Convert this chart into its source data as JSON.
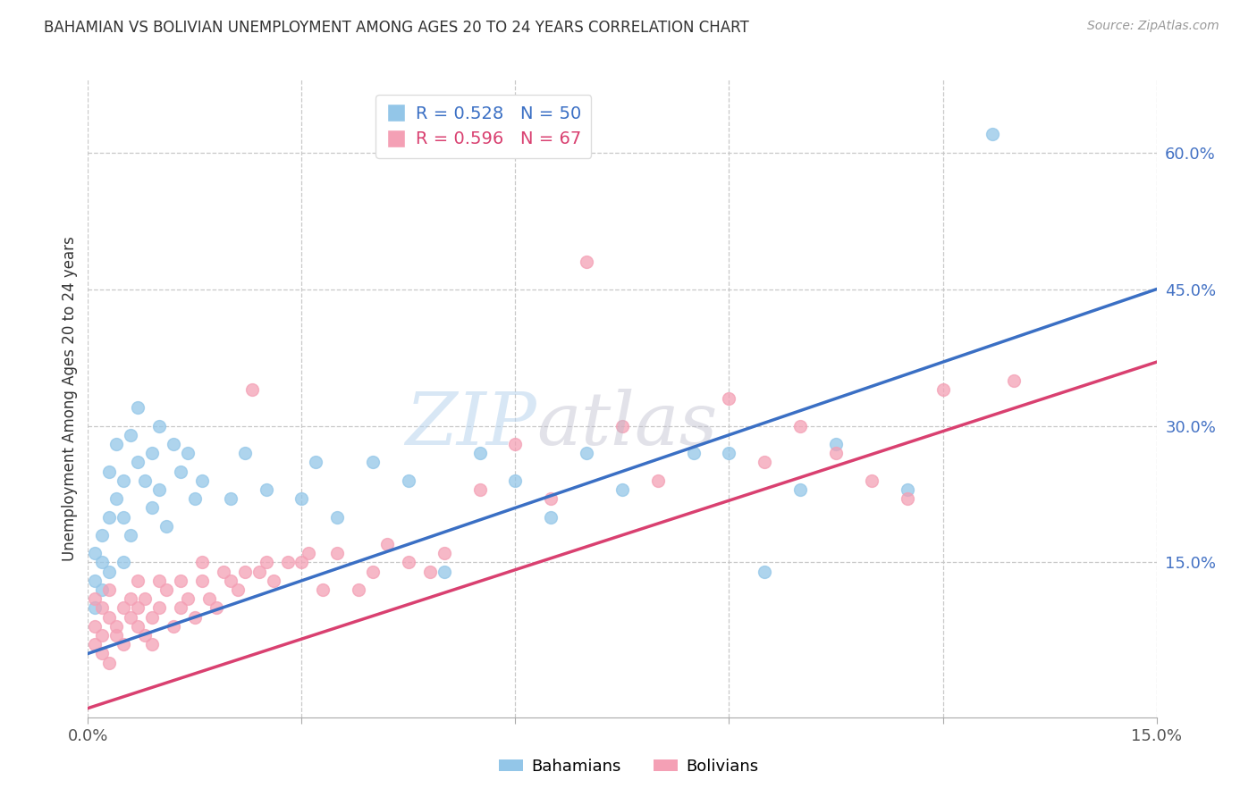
{
  "title": "BAHAMIAN VS BOLIVIAN UNEMPLOYMENT AMONG AGES 20 TO 24 YEARS CORRELATION CHART",
  "source": "Source: ZipAtlas.com",
  "ylabel": "Unemployment Among Ages 20 to 24 years",
  "xlim": [
    0.0,
    0.15
  ],
  "ylim": [
    -0.02,
    0.68
  ],
  "xticks": [
    0.0,
    0.03,
    0.06,
    0.09,
    0.12,
    0.15
  ],
  "xtick_labels": [
    "0.0%",
    "",
    "",
    "",
    "",
    "15.0%"
  ],
  "yticks_right": [
    0.15,
    0.3,
    0.45,
    0.6
  ],
  "ytick_labels_right": [
    "15.0%",
    "30.0%",
    "45.0%",
    "60.0%"
  ],
  "blue_R": 0.528,
  "blue_N": 50,
  "pink_R": 0.596,
  "pink_N": 67,
  "blue_color": "#93C6E8",
  "pink_color": "#F4A0B5",
  "blue_line_color": "#3A6FC4",
  "pink_line_color": "#D94070",
  "legend_label1": "Bahamians",
  "legend_label2": "Bolivians",
  "background_color": "#ffffff",
  "blue_line_x0": 0.0,
  "blue_line_y0": 0.05,
  "blue_line_x1": 0.15,
  "blue_line_y1": 0.45,
  "pink_line_x0": 0.0,
  "pink_line_y0": -0.01,
  "pink_line_x1": 0.15,
  "pink_line_y1": 0.37,
  "blue_x": [
    0.001,
    0.001,
    0.001,
    0.002,
    0.002,
    0.002,
    0.003,
    0.003,
    0.003,
    0.004,
    0.004,
    0.005,
    0.005,
    0.005,
    0.006,
    0.006,
    0.007,
    0.007,
    0.008,
    0.009,
    0.009,
    0.01,
    0.01,
    0.011,
    0.012,
    0.013,
    0.014,
    0.015,
    0.016,
    0.02,
    0.022,
    0.025,
    0.03,
    0.032,
    0.035,
    0.04,
    0.045,
    0.05,
    0.055,
    0.06,
    0.065,
    0.07,
    0.075,
    0.085,
    0.09,
    0.095,
    0.1,
    0.105,
    0.115,
    0.127
  ],
  "blue_y": [
    0.1,
    0.13,
    0.16,
    0.12,
    0.15,
    0.18,
    0.14,
    0.2,
    0.25,
    0.22,
    0.28,
    0.15,
    0.2,
    0.24,
    0.18,
    0.29,
    0.26,
    0.32,
    0.24,
    0.21,
    0.27,
    0.23,
    0.3,
    0.19,
    0.28,
    0.25,
    0.27,
    0.22,
    0.24,
    0.22,
    0.27,
    0.23,
    0.22,
    0.26,
    0.2,
    0.26,
    0.24,
    0.14,
    0.27,
    0.24,
    0.2,
    0.27,
    0.23,
    0.27,
    0.27,
    0.14,
    0.23,
    0.28,
    0.23,
    0.62
  ],
  "pink_x": [
    0.001,
    0.001,
    0.001,
    0.002,
    0.002,
    0.002,
    0.003,
    0.003,
    0.003,
    0.004,
    0.004,
    0.005,
    0.005,
    0.006,
    0.006,
    0.007,
    0.007,
    0.007,
    0.008,
    0.008,
    0.009,
    0.009,
    0.01,
    0.01,
    0.011,
    0.012,
    0.013,
    0.013,
    0.014,
    0.015,
    0.016,
    0.016,
    0.017,
    0.018,
    0.019,
    0.02,
    0.021,
    0.022,
    0.023,
    0.024,
    0.025,
    0.026,
    0.028,
    0.03,
    0.031,
    0.033,
    0.035,
    0.038,
    0.04,
    0.042,
    0.045,
    0.048,
    0.05,
    0.055,
    0.06,
    0.065,
    0.07,
    0.075,
    0.08,
    0.09,
    0.095,
    0.1,
    0.105,
    0.11,
    0.115,
    0.12,
    0.13
  ],
  "pink_y": [
    0.06,
    0.08,
    0.11,
    0.07,
    0.1,
    0.05,
    0.09,
    0.04,
    0.12,
    0.08,
    0.07,
    0.06,
    0.1,
    0.09,
    0.11,
    0.08,
    0.1,
    0.13,
    0.07,
    0.11,
    0.06,
    0.09,
    0.1,
    0.13,
    0.12,
    0.08,
    0.1,
    0.13,
    0.11,
    0.09,
    0.13,
    0.15,
    0.11,
    0.1,
    0.14,
    0.13,
    0.12,
    0.14,
    0.34,
    0.14,
    0.15,
    0.13,
    0.15,
    0.15,
    0.16,
    0.12,
    0.16,
    0.12,
    0.14,
    0.17,
    0.15,
    0.14,
    0.16,
    0.23,
    0.28,
    0.22,
    0.48,
    0.3,
    0.24,
    0.33,
    0.26,
    0.3,
    0.27,
    0.24,
    0.22,
    0.34,
    0.35
  ]
}
